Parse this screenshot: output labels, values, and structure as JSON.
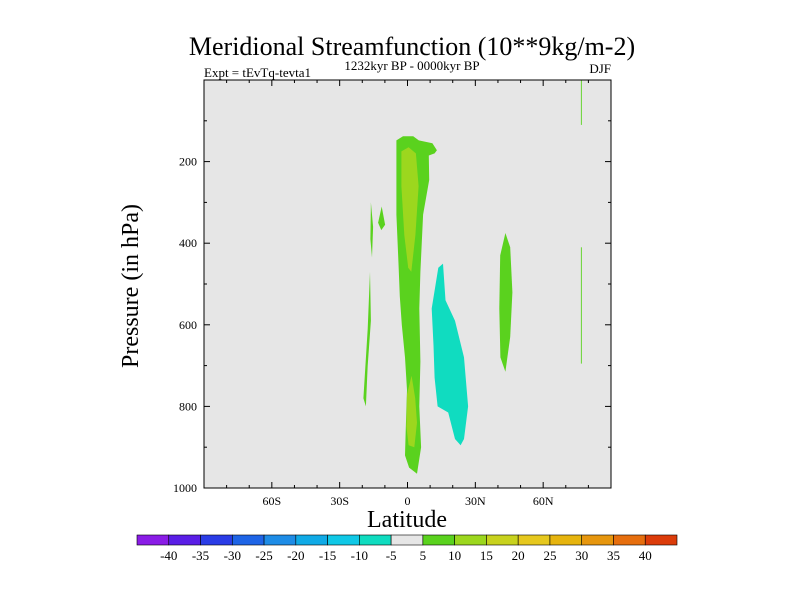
{
  "chart_data": {
    "type": "contour",
    "title": "Meridional Streamfunction (10**9kg/m-2)",
    "left_label": "Expt = tEvTq-tevta1",
    "center_label": "1232kyr BP - 0000kyr BP",
    "right_label": "DJF",
    "xlabel": "Latitude",
    "ylabel": "Pressure (in hPa)",
    "xlim": [
      -90,
      90
    ],
    "ylim": [
      1000,
      0
    ],
    "x_ticks": [
      {
        "value": -60,
        "label": "60S"
      },
      {
        "value": -30,
        "label": "30S"
      },
      {
        "value": 0,
        "label": "0"
      },
      {
        "value": 30,
        "label": "30N"
      },
      {
        "value": 60,
        "label": "60N"
      }
    ],
    "y_ticks": [
      {
        "value": 200,
        "label": "200"
      },
      {
        "value": 400,
        "label": "400"
      },
      {
        "value": 600,
        "label": "600"
      },
      {
        "value": 800,
        "label": "800"
      },
      {
        "value": 1000,
        "label": "1000"
      }
    ],
    "background_color": "#e6e6e6",
    "colorbar": {
      "levels": [
        -40,
        -35,
        -30,
        -25,
        -20,
        -15,
        -10,
        -5,
        5,
        10,
        15,
        20,
        25,
        30,
        35,
        40
      ],
      "colors": [
        "#8a1ce6",
        "#5a1ee6",
        "#2a3ce6",
        "#1e64e6",
        "#1e8ce6",
        "#10aae6",
        "#10c8e6",
        "#10dcc0",
        "#e6e6e6",
        "#5ad21e",
        "#9cd71e",
        "#c8d21e",
        "#e6c81e",
        "#e6b40e",
        "#e6960e",
        "#e66e0e",
        "#dc3c0a"
      ]
    },
    "regions": [
      {
        "name": "core-5-to-10",
        "color_index": 9,
        "points": [
          [
            -4.9,
            148
          ],
          [
            -4.9,
            215
          ],
          [
            -4.9,
            330
          ],
          [
            -4,
            450
          ],
          [
            -3.4,
            530
          ],
          [
            -2.5,
            600
          ],
          [
            -1.1,
            680
          ],
          [
            -0.2,
            760
          ],
          [
            -0.8,
            860
          ],
          [
            -1.1,
            920
          ],
          [
            0.7,
            950
          ],
          [
            4.2,
            965
          ],
          [
            6,
            900
          ],
          [
            5.2,
            800
          ],
          [
            5.7,
            690
          ],
          [
            5.2,
            560
          ],
          [
            5.7,
            470
          ],
          [
            6.9,
            330
          ],
          [
            9.6,
            245
          ],
          [
            9.4,
            185
          ],
          [
            12,
            180
          ],
          [
            13,
            172
          ],
          [
            11,
            155
          ],
          [
            5,
            148
          ],
          [
            2.5,
            138
          ],
          [
            -2,
            138
          ]
        ]
      },
      {
        "name": "core-10-to-15-upper",
        "color_index": 10,
        "points": [
          [
            -2.7,
            175
          ],
          [
            -2.7,
            260
          ],
          [
            -1.4,
            380
          ],
          [
            0.3,
            460
          ],
          [
            1.7,
            470
          ],
          [
            3.5,
            380
          ],
          [
            4.9,
            260
          ],
          [
            3.7,
            180
          ],
          [
            0.5,
            165
          ]
        ]
      },
      {
        "name": "core-10-to-15-lower",
        "color_index": 10,
        "points": [
          [
            -0.2,
            770
          ],
          [
            -0.5,
            850
          ],
          [
            0.5,
            895
          ],
          [
            3,
            900
          ],
          [
            4.2,
            840
          ],
          [
            3.4,
            780
          ],
          [
            1.8,
            725
          ]
        ]
      },
      {
        "name": "negative-5-to-10",
        "color_index": 7,
        "points": [
          [
            10.7,
            560
          ],
          [
            13.6,
            460
          ],
          [
            15.7,
            450
          ],
          [
            16.8,
            540
          ],
          [
            21,
            590
          ],
          [
            25,
            680
          ],
          [
            26.8,
            800
          ],
          [
            25,
            880
          ],
          [
            23.5,
            895
          ],
          [
            21,
            880
          ],
          [
            18,
            815
          ],
          [
            13.3,
            800
          ],
          [
            12,
            730
          ],
          [
            11.5,
            650
          ]
        ]
      },
      {
        "name": "cell-30n",
        "color_index": 9,
        "points": [
          [
            41,
            430
          ],
          [
            43.3,
            375
          ],
          [
            45.4,
            410
          ],
          [
            46.4,
            520
          ],
          [
            45.4,
            630
          ],
          [
            43.3,
            715
          ],
          [
            41.1,
            680
          ],
          [
            40.6,
            560
          ]
        ]
      },
      {
        "name": "cell-20s-lower",
        "color_index": 9,
        "points": [
          [
            -19.5,
            780
          ],
          [
            -17.6,
            610
          ],
          [
            -16.6,
            470
          ],
          [
            -16.2,
            590
          ],
          [
            -17.6,
            700
          ],
          [
            -18.4,
            800
          ]
        ]
      },
      {
        "name": "cell-20s-upper",
        "color_index": 9,
        "points": [
          [
            -16.2,
            300
          ],
          [
            -15.2,
            360
          ],
          [
            -15.7,
            435
          ],
          [
            -16.4,
            390
          ]
        ]
      },
      {
        "name": "blob-13s",
        "color_index": 9,
        "points": [
          [
            -11.6,
            368
          ],
          [
            -13,
            350
          ],
          [
            -11.4,
            310
          ],
          [
            -9.9,
            355
          ]
        ]
      },
      {
        "name": "strip-76n-top",
        "color_index": 9,
        "points": [
          [
            76.7,
            0
          ],
          [
            77.1,
            0
          ],
          [
            77.1,
            110
          ],
          [
            76.7,
            110
          ]
        ]
      },
      {
        "name": "strip-76n-mid",
        "color_index": 9,
        "points": [
          [
            76.7,
            410
          ],
          [
            77.1,
            410
          ],
          [
            77.1,
            695
          ],
          [
            76.7,
            695
          ]
        ]
      }
    ]
  }
}
